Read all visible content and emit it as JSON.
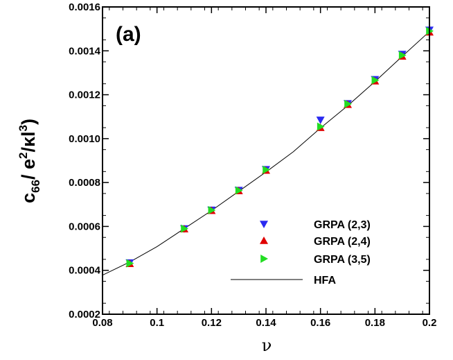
{
  "chart_data": {
    "type": "scatter",
    "panel_label": "(a)",
    "xlabel": "ν",
    "ylabel": {
      "base": "c",
      "sub": "66",
      "slash": "/ e",
      "sup1": "2",
      "mid": "/κl",
      "sup2": "3",
      "end": ")"
    },
    "xlim": [
      0.08,
      0.2
    ],
    "ylim": [
      0.0002,
      0.0016
    ],
    "xticks": [
      0.08,
      0.1,
      0.12,
      0.14,
      0.16,
      0.18,
      0.2
    ],
    "xtick_labels": [
      "0.08",
      "0.1",
      "0.12",
      "0.14",
      "0.16",
      "0.18",
      "0.2"
    ],
    "yticks": [
      0.0002,
      0.0004,
      0.0006,
      0.0008,
      0.001,
      0.0012,
      0.0014,
      0.0016
    ],
    "ytick_labels": [
      "0.0002",
      "0.0004",
      "0.0006",
      "0.0008",
      "0.0010",
      "0.0012",
      "0.0014",
      "0.0016"
    ],
    "grid": false,
    "legend_position": "bottom-right",
    "series": [
      {
        "name": "GRPA (2,3)",
        "marker": "triangle-down",
        "color": "#2a2af0",
        "x": [
          0.09,
          0.11,
          0.12,
          0.13,
          0.14,
          0.16,
          0.17,
          0.18,
          0.19,
          0.2
        ],
        "y": [
          0.000435,
          0.00059,
          0.000675,
          0.000765,
          0.00086,
          0.001085,
          0.00116,
          0.00127,
          0.001385,
          0.001495
        ]
      },
      {
        "name": "GRPA (2,4)",
        "marker": "triangle-up",
        "color": "#e00000",
        "x": [
          0.09,
          0.11,
          0.12,
          0.13,
          0.14,
          0.16,
          0.17,
          0.18,
          0.19,
          0.2
        ],
        "y": [
          0.00043,
          0.000588,
          0.000672,
          0.000762,
          0.000855,
          0.00105,
          0.001155,
          0.001262,
          0.001375,
          0.001485
        ]
      },
      {
        "name": "GRPA (3,5)",
        "marker": "triangle-right",
        "color": "#22dd22",
        "x": [
          0.09,
          0.11,
          0.12,
          0.13,
          0.14,
          0.16,
          0.17,
          0.18,
          0.19,
          0.2
        ],
        "y": [
          0.000432,
          0.00059,
          0.000674,
          0.000764,
          0.000858,
          0.001055,
          0.001158,
          0.001266,
          0.00138,
          0.00149
        ]
      },
      {
        "name": "HFA",
        "marker": "line",
        "color": "#000000",
        "x": [
          0.08,
          0.09,
          0.1,
          0.11,
          0.12,
          0.13,
          0.14,
          0.15,
          0.16,
          0.17,
          0.18,
          0.19,
          0.2
        ],
        "y": [
          0.000378,
          0.000438,
          0.000508,
          0.00059,
          0.000672,
          0.00076,
          0.000848,
          0.00094,
          0.001048,
          0.00115,
          0.00126,
          0.001375,
          0.001488
        ]
      }
    ]
  }
}
